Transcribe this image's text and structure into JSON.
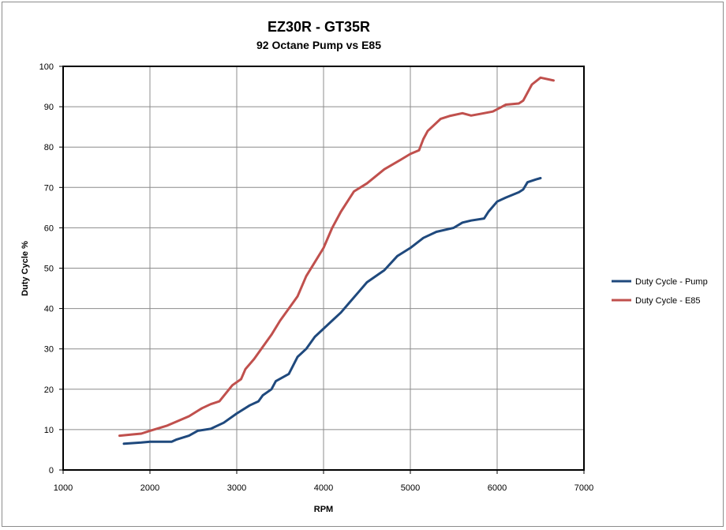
{
  "chart_data": {
    "type": "line",
    "title": "EZ30R - GT35R",
    "subtitle": "92 Octane Pump vs E85",
    "xlabel": "RPM",
    "ylabel": "Duty Cycle %",
    "xlim": [
      1000,
      7000
    ],
    "ylim": [
      0,
      100
    ],
    "x_ticks": [
      "1000",
      "2000",
      "3000",
      "4000",
      "5000",
      "6000",
      "7000"
    ],
    "y_ticks": [
      "0",
      "10",
      "20",
      "30",
      "40",
      "50",
      "60",
      "70",
      "80",
      "90",
      "100"
    ],
    "grid": true,
    "legend_position": "right",
    "series": [
      {
        "name": "Duty Cycle - Pump",
        "color": "#1f497d",
        "points": [
          [
            1700,
            6.5
          ],
          [
            1900,
            6.8
          ],
          [
            2000,
            7.0
          ],
          [
            2250,
            7.0
          ],
          [
            2300,
            7.5
          ],
          [
            2450,
            8.5
          ],
          [
            2550,
            9.7
          ],
          [
            2700,
            10.2
          ],
          [
            2850,
            11.7
          ],
          [
            3000,
            14.0
          ],
          [
            3150,
            16.0
          ],
          [
            3250,
            17.0
          ],
          [
            3300,
            18.5
          ],
          [
            3400,
            20.0
          ],
          [
            3450,
            22.0
          ],
          [
            3600,
            23.8
          ],
          [
            3700,
            28.0
          ],
          [
            3800,
            30.0
          ],
          [
            3900,
            33.0
          ],
          [
            4000,
            35.0
          ],
          [
            4100,
            37.0
          ],
          [
            4200,
            39.0
          ],
          [
            4300,
            41.5
          ],
          [
            4400,
            44.0
          ],
          [
            4500,
            46.5
          ],
          [
            4700,
            49.5
          ],
          [
            4850,
            53.0
          ],
          [
            5000,
            55.0
          ],
          [
            5150,
            57.5
          ],
          [
            5300,
            59.0
          ],
          [
            5500,
            60.0
          ],
          [
            5600,
            61.3
          ],
          [
            5700,
            61.8
          ],
          [
            5850,
            62.3
          ],
          [
            5900,
            64.0
          ],
          [
            6000,
            66.5
          ],
          [
            6100,
            67.5
          ],
          [
            6250,
            68.8
          ],
          [
            6300,
            69.5
          ],
          [
            6350,
            71.3
          ],
          [
            6450,
            72.0
          ],
          [
            6500,
            72.3
          ]
        ]
      },
      {
        "name": "Duty Cycle - E85",
        "color": "#c0504d",
        "points": [
          [
            1650,
            8.5
          ],
          [
            1800,
            8.8
          ],
          [
            1900,
            9.0
          ],
          [
            2000,
            9.7
          ],
          [
            2200,
            11.0
          ],
          [
            2450,
            13.3
          ],
          [
            2600,
            15.3
          ],
          [
            2700,
            16.3
          ],
          [
            2800,
            17.0
          ],
          [
            2950,
            21.0
          ],
          [
            3050,
            22.5
          ],
          [
            3100,
            25.0
          ],
          [
            3200,
            27.5
          ],
          [
            3300,
            30.5
          ],
          [
            3400,
            33.5
          ],
          [
            3500,
            37.0
          ],
          [
            3600,
            40.0
          ],
          [
            3700,
            43.0
          ],
          [
            3800,
            48.0
          ],
          [
            3900,
            51.5
          ],
          [
            4000,
            55.0
          ],
          [
            4100,
            60.0
          ],
          [
            4200,
            64.0
          ],
          [
            4350,
            69.0
          ],
          [
            4500,
            71.0
          ],
          [
            4700,
            74.5
          ],
          [
            4900,
            77.0
          ],
          [
            5000,
            78.3
          ],
          [
            5100,
            79.2
          ],
          [
            5150,
            82.0
          ],
          [
            5200,
            84.0
          ],
          [
            5350,
            87.0
          ],
          [
            5450,
            87.7
          ],
          [
            5600,
            88.4
          ],
          [
            5700,
            87.8
          ],
          [
            5800,
            88.2
          ],
          [
            5950,
            88.8
          ],
          [
            6100,
            90.5
          ],
          [
            6250,
            90.8
          ],
          [
            6300,
            91.5
          ],
          [
            6400,
            95.5
          ],
          [
            6500,
            97.2
          ],
          [
            6650,
            96.5
          ]
        ]
      }
    ]
  }
}
